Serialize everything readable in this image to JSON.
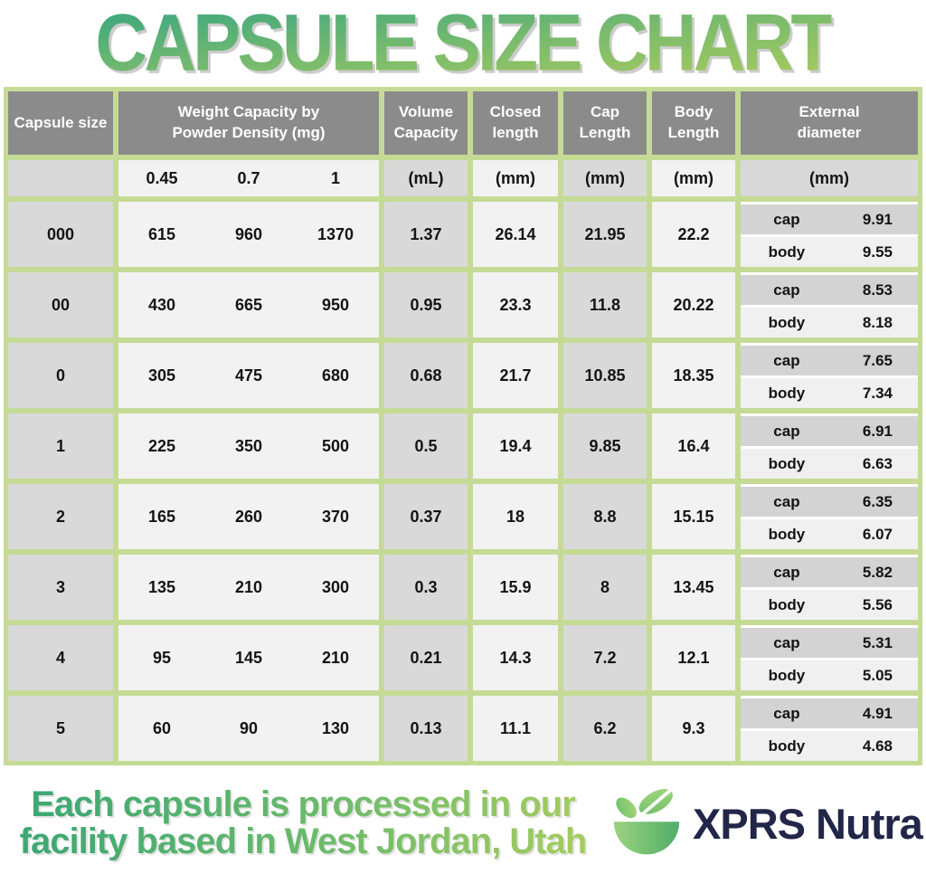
{
  "title": "CAPSULE SIZE CHART",
  "chart_data": {
    "type": "table",
    "title": "CAPSULE SIZE CHART",
    "columns": {
      "capsule_size": [
        "Capsule size"
      ],
      "weight": [
        "Weight Capacity by",
        "Powder Density (mg)"
      ],
      "volume": [
        "Volume",
        "Capacity"
      ],
      "closed_length": [
        "Closed",
        "length"
      ],
      "cap_length": [
        "Cap",
        "Length"
      ],
      "body_length": [
        "Body",
        "Length"
      ],
      "external_diameter": [
        "External",
        "diameter"
      ]
    },
    "units": {
      "weight_densities": [
        "0.45",
        "0.7",
        "1"
      ],
      "volume": "(mL)",
      "closed_length": "(mm)",
      "cap_length": "(mm)",
      "body_length": "(mm)",
      "external_diameter": "(mm)"
    },
    "diameter_labels": {
      "cap": "cap",
      "body": "body"
    },
    "rows": [
      {
        "size": "000",
        "weights": [
          "615",
          "960",
          "1370"
        ],
        "volume": "1.37",
        "closed_length": "26.14",
        "cap_length": "21.95",
        "body_length": "22.2",
        "cap_diameter": "9.91",
        "body_diameter": "9.55"
      },
      {
        "size": "00",
        "weights": [
          "430",
          "665",
          "950"
        ],
        "volume": "0.95",
        "closed_length": "23.3",
        "cap_length": "11.8",
        "body_length": "20.22",
        "cap_diameter": "8.53",
        "body_diameter": "8.18"
      },
      {
        "size": "0",
        "weights": [
          "305",
          "475",
          "680"
        ],
        "volume": "0.68",
        "closed_length": "21.7",
        "cap_length": "10.85",
        "body_length": "18.35",
        "cap_diameter": "7.65",
        "body_diameter": "7.34"
      },
      {
        "size": "1",
        "weights": [
          "225",
          "350",
          "500"
        ],
        "volume": "0.5",
        "closed_length": "19.4",
        "cap_length": "9.85",
        "body_length": "16.4",
        "cap_diameter": "6.91",
        "body_diameter": "6.63"
      },
      {
        "size": "2",
        "weights": [
          "165",
          "260",
          "370"
        ],
        "volume": "0.37",
        "closed_length": "18",
        "cap_length": "8.8",
        "body_length": "15.15",
        "cap_diameter": "6.35",
        "body_diameter": "6.07"
      },
      {
        "size": "3",
        "weights": [
          "135",
          "210",
          "300"
        ],
        "volume": "0.3",
        "closed_length": "15.9",
        "cap_length": "8",
        "body_length": "13.45",
        "cap_diameter": "5.82",
        "body_diameter": "5.56"
      },
      {
        "size": "4",
        "weights": [
          "95",
          "145",
          "210"
        ],
        "volume": "0.21",
        "closed_length": "14.3",
        "cap_length": "7.2",
        "body_length": "12.1",
        "cap_diameter": "5.31",
        "body_diameter": "5.05"
      },
      {
        "size": "5",
        "weights": [
          "60",
          "90",
          "130"
        ],
        "volume": "0.13",
        "closed_length": "11.1",
        "cap_length": "6.2",
        "body_length": "9.3",
        "cap_diameter": "4.91",
        "body_diameter": "4.68"
      }
    ]
  },
  "footer": {
    "tagline_line1": "Each capsule is processed in our",
    "tagline_line2": "facility based in West Jordan, Utah",
    "brand": "XPRS Nutra"
  },
  "colors": {
    "border_green": "#c5db95",
    "header_gray": "#8b8b8b",
    "cell_gray": "#d9d9d9",
    "cell_light": "#f2f2f2",
    "diameter_cap_gray": "#d3d3d3",
    "diameter_body_light": "#f0f0f0",
    "title_gradient_top": "#3fa87e",
    "title_gradient_bottom": "#abcb5d",
    "tagline_gradient_left": "#3ea873",
    "tagline_gradient_right": "#a5cc60",
    "brand_navy": "#222649"
  }
}
